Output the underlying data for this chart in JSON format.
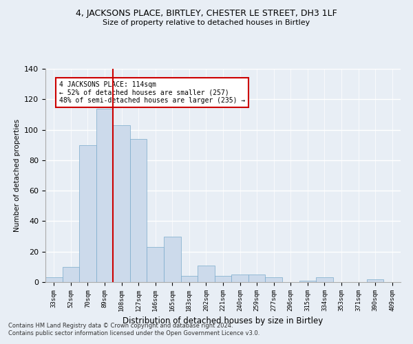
{
  "title1": "4, JACKSONS PLACE, BIRTLEY, CHESTER LE STREET, DH3 1LF",
  "title2": "Size of property relative to detached houses in Birtley",
  "xlabel": "Distribution of detached houses by size in Birtley",
  "ylabel": "Number of detached properties",
  "bar_color": "#ccdaeb",
  "bar_edge_color": "#7aaacb",
  "bins": [
    "33sqm",
    "52sqm",
    "70sqm",
    "89sqm",
    "108sqm",
    "127sqm",
    "146sqm",
    "165sqm",
    "183sqm",
    "202sqm",
    "221sqm",
    "240sqm",
    "259sqm",
    "277sqm",
    "296sqm",
    "315sqm",
    "334sqm",
    "353sqm",
    "371sqm",
    "390sqm",
    "409sqm"
  ],
  "heights": [
    3,
    10,
    90,
    114,
    103,
    94,
    23,
    30,
    4,
    11,
    4,
    5,
    5,
    3,
    0,
    1,
    3,
    0,
    0,
    2,
    0
  ],
  "vline_pos": 3.5,
  "vline_color": "#cc0000",
  "annotation_text": "4 JACKSONS PLACE: 114sqm\n← 52% of detached houses are smaller (257)\n48% of semi-detached houses are larger (235) →",
  "annotation_box_color": "#ffffff",
  "annotation_box_edge": "#cc0000",
  "ylim": [
    0,
    140
  ],
  "yticks": [
    0,
    20,
    40,
    60,
    80,
    100,
    120,
    140
  ],
  "footnote1": "Contains HM Land Registry data © Crown copyright and database right 2024.",
  "footnote2": "Contains public sector information licensed under the Open Government Licence v3.0.",
  "background_color": "#e8eef5",
  "grid_color": "#ffffff"
}
